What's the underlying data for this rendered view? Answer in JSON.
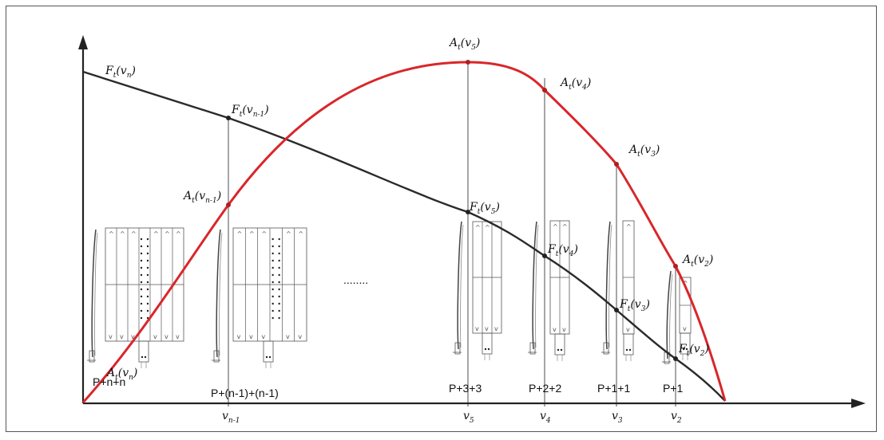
{
  "axes": {
    "x_arrow": true,
    "y_arrow": true
  },
  "curves": {
    "force": {
      "color": "#2a2a2a"
    },
    "area": {
      "color": "#d9262a"
    }
  },
  "velocity_labels": [
    {
      "base": "v",
      "sub": "n-1"
    },
    {
      "base": "v",
      "sub": "5"
    },
    {
      "base": "v",
      "sub": "4"
    },
    {
      "base": "v",
      "sub": "3"
    },
    {
      "base": "v",
      "sub": "2"
    }
  ],
  "force_labels": [
    {
      "base": "F",
      "sub1": "t",
      "arg": "v",
      "sub2": "n"
    },
    {
      "base": "F",
      "sub1": "t",
      "arg": "v",
      "sub2": "n-1"
    },
    {
      "base": "F",
      "sub1": "t",
      "arg": "v",
      "sub2": "5"
    },
    {
      "base": "F",
      "sub1": "t",
      "arg": "v",
      "sub2": "4"
    },
    {
      "base": "F",
      "sub1": "t",
      "arg": "v",
      "sub2": "3"
    },
    {
      "base": "F",
      "sub1": "t",
      "arg": "v",
      "sub2": "2"
    }
  ],
  "area_labels": [
    {
      "base": "A",
      "sub1": "t",
      "arg": "v",
      "sub2": "n"
    },
    {
      "base": "A",
      "sub1": "t",
      "arg": "v",
      "sub2": "n-1"
    },
    {
      "base": "A",
      "sub1": "t",
      "arg": "v",
      "sub2": "5"
    },
    {
      "base": "A",
      "sub1": "t",
      "arg": "v",
      "sub2": "4"
    },
    {
      "base": "A",
      "sub1": "t",
      "arg": "v",
      "sub2": "3"
    },
    {
      "base": "A",
      "sub1": "t",
      "arg": "v",
      "sub2": "2"
    }
  ],
  "configurations": [
    "P+n+n",
    "P+(n-1)+(n-1)",
    "P+3+3",
    "P+2+2",
    "P+1+1",
    "P+1"
  ],
  "ellipsis": "........"
}
